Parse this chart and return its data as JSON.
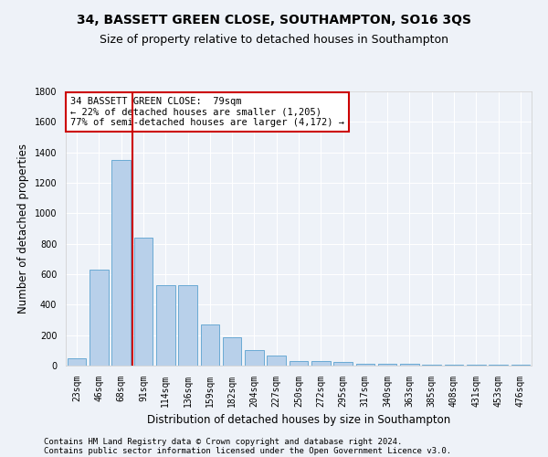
{
  "title1": "34, BASSETT GREEN CLOSE, SOUTHAMPTON, SO16 3QS",
  "title2": "Size of property relative to detached houses in Southampton",
  "xlabel": "Distribution of detached houses by size in Southampton",
  "ylabel": "Number of detached properties",
  "categories": [
    "23sqm",
    "46sqm",
    "68sqm",
    "91sqm",
    "114sqm",
    "136sqm",
    "159sqm",
    "182sqm",
    "204sqm",
    "227sqm",
    "250sqm",
    "272sqm",
    "295sqm",
    "317sqm",
    "340sqm",
    "363sqm",
    "385sqm",
    "408sqm",
    "431sqm",
    "453sqm",
    "476sqm"
  ],
  "values": [
    50,
    630,
    1350,
    840,
    530,
    530,
    270,
    185,
    105,
    65,
    30,
    30,
    25,
    15,
    10,
    10,
    5,
    5,
    5,
    5,
    5
  ],
  "bar_color": "#b8d0ea",
  "bar_edge_color": "#6aaad4",
  "vline_color": "#cc0000",
  "annotation_text": "34 BASSETT GREEN CLOSE:  79sqm\n← 22% of detached houses are smaller (1,205)\n77% of semi-detached houses are larger (4,172) →",
  "annotation_box_color": "#ffffff",
  "annotation_box_edge": "#cc0000",
  "ylim": [
    0,
    1800
  ],
  "yticks": [
    0,
    200,
    400,
    600,
    800,
    1000,
    1200,
    1400,
    1600,
    1800
  ],
  "footer1": "Contains HM Land Registry data © Crown copyright and database right 2024.",
  "footer2": "Contains public sector information licensed under the Open Government Licence v3.0.",
  "background_color": "#eef2f8",
  "grid_color": "#ffffff",
  "title_fontsize": 10,
  "subtitle_fontsize": 9,
  "tick_fontsize": 7,
  "label_fontsize": 8.5,
  "footer_fontsize": 6.5,
  "annot_fontsize": 7.5
}
